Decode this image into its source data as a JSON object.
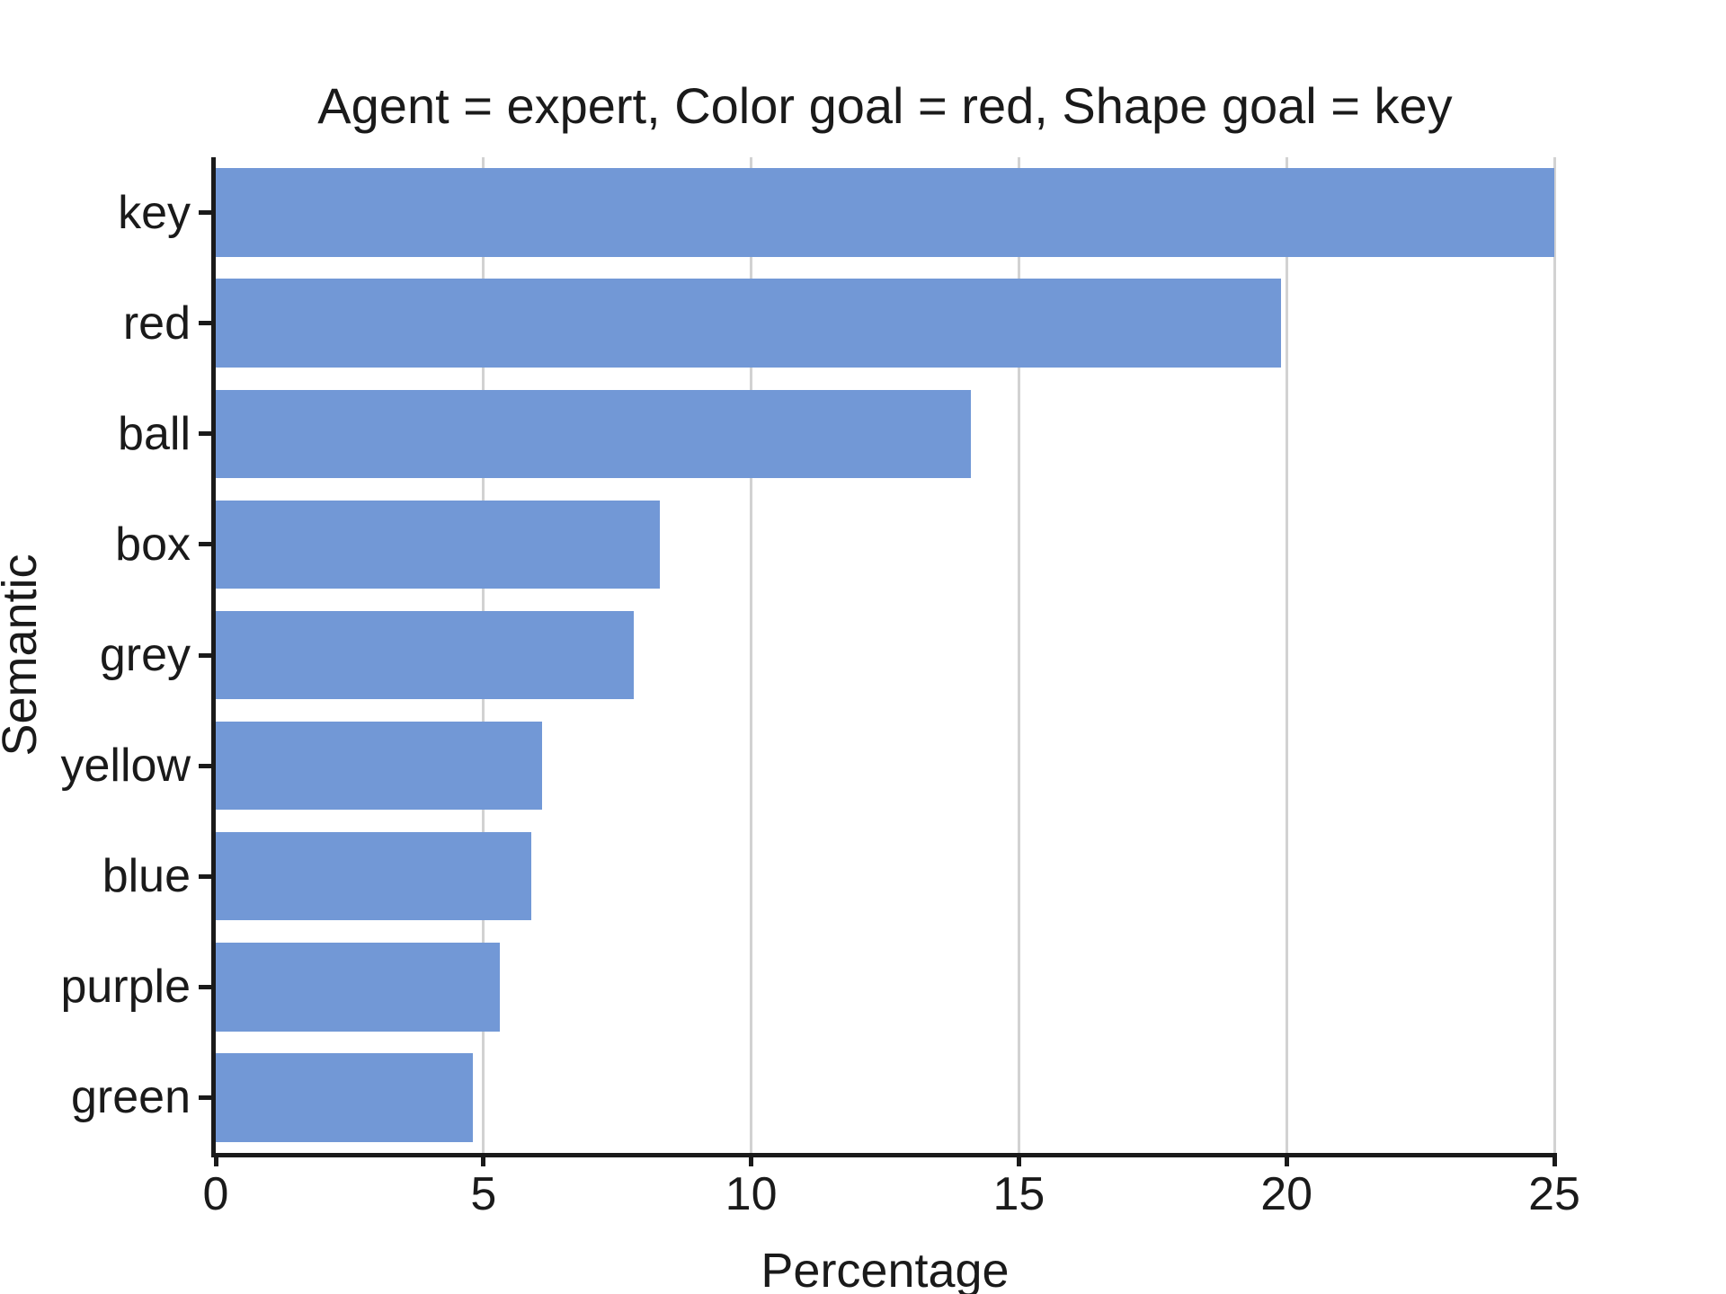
{
  "title": "Agent = expert, Color goal = red, Shape goal = key",
  "chart_data": {
    "type": "bar",
    "orientation": "horizontal",
    "title": "Agent = expert, Color goal = red, Shape goal = key",
    "xlabel": "Percentage",
    "ylabel": "Semantic",
    "categories": [
      "key",
      "red",
      "ball",
      "box",
      "grey",
      "yellow",
      "blue",
      "purple",
      "green"
    ],
    "values": [
      25.0,
      19.9,
      14.1,
      8.3,
      7.8,
      6.1,
      5.9,
      5.3,
      4.8
    ],
    "xlim": [
      0,
      25
    ],
    "xticks": [
      0,
      5,
      10,
      15,
      20,
      25
    ],
    "grid": true,
    "legend": false,
    "colors": {
      "bar": "#7298d6",
      "gridline": "#d2d2d2",
      "axis": "#1a1a1a",
      "text": "#1a1a1a",
      "background": "#ffffff"
    }
  }
}
